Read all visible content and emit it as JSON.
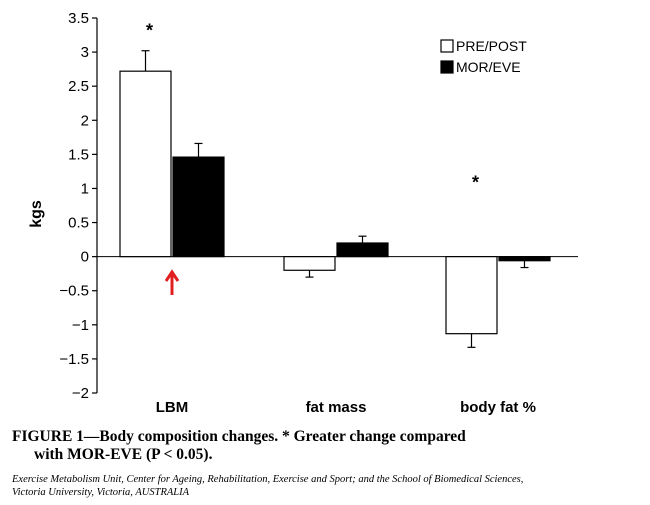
{
  "chart_data": {
    "type": "bar",
    "categories": [
      "LBM",
      "fat mass",
      "body fat %"
    ],
    "series": [
      {
        "name": "PRE/POST",
        "values": [
          2.72,
          -0.2,
          -1.13
        ],
        "errors": [
          0.3,
          0.1,
          0.2
        ],
        "color": "#ffffff"
      },
      {
        "name": "MOR/EVE",
        "values": [
          1.46,
          0.2,
          -0.06
        ],
        "errors": [
          0.2,
          0.1,
          0.1
        ],
        "color": "#000000"
      }
    ],
    "ylabel": "kgs",
    "xlabel": "",
    "ylim": [
      -2,
      3.5
    ],
    "yticks": [
      "3.5",
      "3",
      "2.5",
      "2",
      "1.5",
      "1",
      "0.5",
      "0",
      "−0.5",
      "−1",
      "−1.5",
      "−2"
    ],
    "significance": [
      {
        "category": "LBM",
        "mark": "*"
      },
      {
        "category": "body fat %",
        "mark": "*"
      }
    ],
    "annotation": {
      "category": "LBM",
      "marker": "red-up-arrow",
      "color": "#e02020"
    },
    "legend_position": "top-right",
    "grid": false
  },
  "caption": {
    "line1": "FIGURE 1—Body composition changes. * Greater change compared",
    "line2": "with MOR-EVE (P < 0.05)."
  },
  "credit": {
    "line1": "Exercise Metabolism Unit, Center for Ageing, Rehabilitation, Exercise and Sport; and the School of Biomedical Sciences,",
    "line2": "Victoria University, Victoria, AUSTRALIA"
  }
}
